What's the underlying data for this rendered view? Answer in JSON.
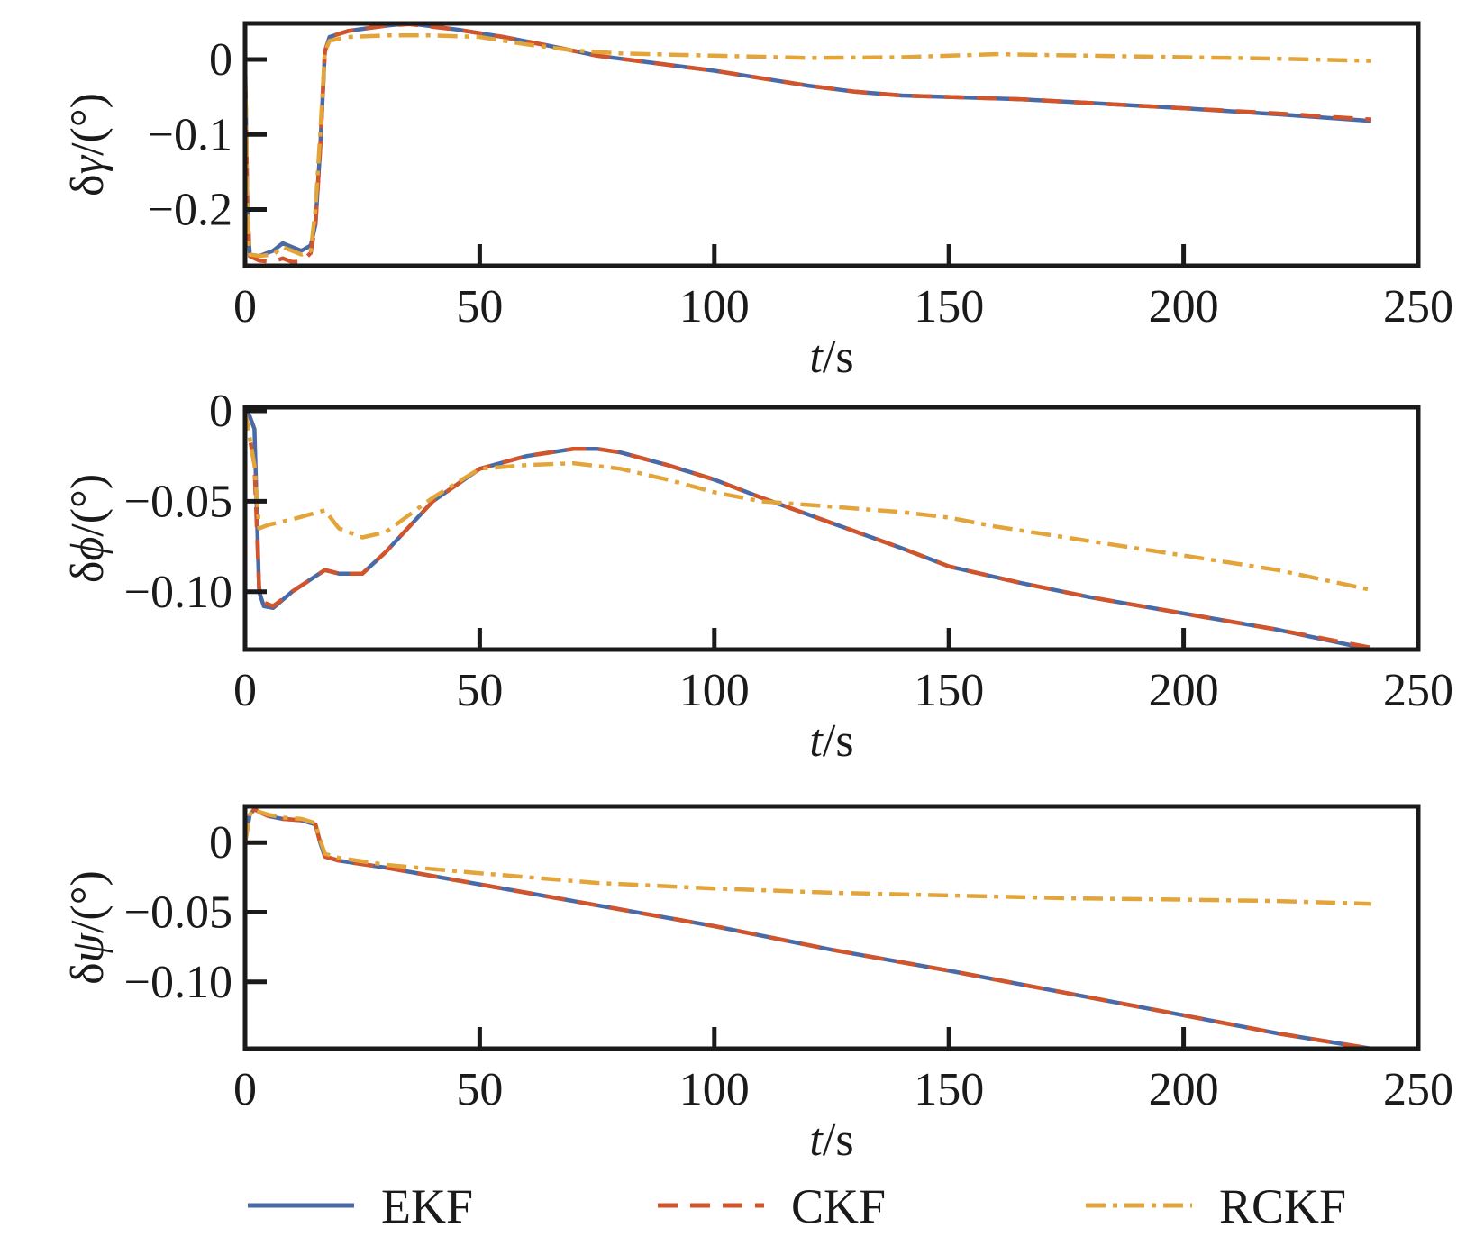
{
  "colors": {
    "EKF": "#4a6aa5",
    "CKF": "#d2542b",
    "RCKF": "#e3a43a",
    "axis": "#1a1a1a"
  },
  "legend": {
    "entries": [
      {
        "name": "EKF",
        "style": "solid"
      },
      {
        "name": "CKF",
        "style": "dashed"
      },
      {
        "name": "RCKF",
        "style": "dashdot"
      }
    ]
  },
  "chart_data": [
    {
      "type": "line",
      "id": "gamma",
      "title": "",
      "ylabel": "δγ/(°)",
      "xlabel": "t/s",
      "xlim": [
        0,
        250
      ],
      "ylim": [
        -0.275,
        0.048
      ],
      "xticks": [
        0,
        50,
        100,
        150,
        200,
        250
      ],
      "yticks": [
        0,
        -0.1,
        -0.2
      ],
      "ytick_labels": [
        "0",
        "−0.1",
        "−0.2"
      ],
      "series": [
        {
          "name": "EKF",
          "x": [
            0,
            0.5,
            1,
            3,
            6,
            8,
            10,
            12,
            14,
            15,
            16,
            17,
            18,
            22,
            30,
            35,
            45,
            55,
            65,
            75,
            85,
            100,
            110,
            120,
            130,
            140,
            150,
            165,
            180,
            200,
            220,
            240
          ],
          "y": [
            0,
            -0.2,
            -0.26,
            -0.262,
            -0.255,
            -0.245,
            -0.25,
            -0.255,
            -0.248,
            -0.22,
            -0.12,
            0.01,
            0.03,
            0.038,
            0.045,
            0.048,
            0.04,
            0.03,
            0.018,
            0.005,
            -0.003,
            -0.015,
            -0.025,
            -0.035,
            -0.043,
            -0.048,
            -0.05,
            -0.053,
            -0.058,
            -0.065,
            -0.073,
            -0.082
          ]
        },
        {
          "name": "CKF",
          "x": [
            0,
            0.5,
            1,
            3,
            6,
            8,
            10,
            12,
            14,
            15,
            16,
            17,
            18,
            22,
            30,
            35,
            45,
            55,
            65,
            75,
            85,
            100,
            110,
            120,
            130,
            140,
            150,
            165,
            180,
            200,
            220,
            240
          ],
          "y": [
            0,
            -0.2,
            -0.262,
            -0.268,
            -0.27,
            -0.265,
            -0.27,
            -0.27,
            -0.258,
            -0.22,
            -0.12,
            0.01,
            0.03,
            0.038,
            0.045,
            0.047,
            0.04,
            0.03,
            0.018,
            0.005,
            -0.003,
            -0.015,
            -0.025,
            -0.035,
            -0.043,
            -0.048,
            -0.05,
            -0.053,
            -0.058,
            -0.065,
            -0.072,
            -0.08
          ]
        },
        {
          "name": "RCKF",
          "x": [
            0,
            0.5,
            1,
            3,
            6,
            8,
            10,
            12,
            14,
            15,
            16,
            17,
            18,
            22,
            30,
            40,
            50,
            60,
            70,
            80,
            100,
            120,
            140,
            160,
            180,
            200,
            220,
            240
          ],
          "y": [
            0,
            -0.2,
            -0.26,
            -0.262,
            -0.26,
            -0.25,
            -0.255,
            -0.26,
            -0.255,
            -0.2,
            -0.1,
            0.01,
            0.025,
            0.03,
            0.032,
            0.032,
            0.03,
            0.02,
            0.012,
            0.008,
            0.005,
            0.002,
            0.003,
            0.007,
            0.005,
            0.003,
            0.001,
            -0.002
          ]
        }
      ]
    },
    {
      "type": "line",
      "id": "phi",
      "title": "",
      "ylabel": "δϕ/(°)",
      "xlabel": "t/s",
      "xlim": [
        0,
        250
      ],
      "ylim": [
        -0.132,
        0.002
      ],
      "xticks": [
        0,
        50,
        100,
        150,
        200,
        250
      ],
      "yticks": [
        0,
        -0.05,
        -0.1
      ],
      "ytick_labels": [
        "0",
        "−0.05",
        "−0.10"
      ],
      "series": [
        {
          "name": "EKF",
          "x": [
            0,
            1,
            2,
            3,
            4,
            6,
            10,
            17,
            20,
            25,
            30,
            40,
            50,
            60,
            70,
            75,
            80,
            90,
            100,
            110,
            125,
            140,
            150,
            165,
            180,
            200,
            220,
            240
          ],
          "y": [
            0,
            -0.003,
            -0.01,
            -0.1,
            -0.108,
            -0.109,
            -0.1,
            -0.088,
            -0.09,
            -0.09,
            -0.078,
            -0.05,
            -0.032,
            -0.025,
            -0.021,
            -0.021,
            -0.023,
            -0.03,
            -0.038,
            -0.048,
            -0.062,
            -0.076,
            -0.086,
            -0.095,
            -0.103,
            -0.112,
            -0.121,
            -0.132
          ]
        },
        {
          "name": "CKF",
          "x": [
            0,
            1,
            2,
            3,
            4,
            6,
            10,
            17,
            20,
            25,
            30,
            40,
            50,
            60,
            70,
            75,
            80,
            90,
            100,
            110,
            125,
            140,
            150,
            165,
            180,
            200,
            220,
            240
          ],
          "y": [
            0,
            -0.015,
            -0.03,
            -0.098,
            -0.106,
            -0.108,
            -0.1,
            -0.088,
            -0.09,
            -0.09,
            -0.078,
            -0.05,
            -0.032,
            -0.025,
            -0.021,
            -0.021,
            -0.023,
            -0.03,
            -0.038,
            -0.048,
            -0.062,
            -0.076,
            -0.086,
            -0.095,
            -0.103,
            -0.112,
            -0.121,
            -0.131
          ]
        },
        {
          "name": "RCKF",
          "x": [
            0,
            1,
            2,
            3,
            5,
            10,
            17,
            20,
            25,
            30,
            40,
            50,
            60,
            70,
            80,
            90,
            100,
            110,
            120,
            140,
            150,
            160,
            180,
            200,
            220,
            240
          ],
          "y": [
            0,
            -0.015,
            -0.03,
            -0.065,
            -0.063,
            -0.06,
            -0.055,
            -0.065,
            -0.07,
            -0.067,
            -0.048,
            -0.032,
            -0.03,
            -0.029,
            -0.032,
            -0.038,
            -0.045,
            -0.05,
            -0.052,
            -0.056,
            -0.059,
            -0.064,
            -0.072,
            -0.08,
            -0.088,
            -0.099
          ]
        }
      ]
    },
    {
      "type": "line",
      "id": "psi",
      "title": "",
      "ylabel": "δψ/(°)",
      "xlabel": "t/s",
      "xlim": [
        0,
        250
      ],
      "ylim": [
        -0.148,
        0.026
      ],
      "xticks": [
        0,
        50,
        100,
        150,
        200,
        250
      ],
      "yticks": [
        0,
        -0.05,
        -0.1
      ],
      "ytick_labels": [
        "0",
        "−0.05",
        "−0.10"
      ],
      "series": [
        {
          "name": "EKF",
          "x": [
            0,
            1,
            2,
            3,
            5,
            8,
            12,
            15,
            16,
            17,
            20,
            30,
            50,
            75,
            100,
            125,
            150,
            175,
            200,
            220,
            240
          ],
          "y": [
            0,
            0.02,
            0.024,
            0.022,
            0.019,
            0.017,
            0.016,
            0.013,
            0.0,
            -0.01,
            -0.013,
            -0.018,
            -0.03,
            -0.045,
            -0.06,
            -0.077,
            -0.092,
            -0.108,
            -0.124,
            -0.137,
            -0.148
          ]
        },
        {
          "name": "CKF",
          "x": [
            0,
            1,
            2,
            3,
            5,
            8,
            12,
            15,
            16,
            17,
            20,
            30,
            50,
            75,
            100,
            125,
            150,
            175,
            200,
            220,
            240
          ],
          "y": [
            0,
            0.02,
            0.024,
            0.022,
            0.019,
            0.017,
            0.016,
            0.013,
            0.0,
            -0.01,
            -0.013,
            -0.018,
            -0.03,
            -0.045,
            -0.06,
            -0.077,
            -0.092,
            -0.108,
            -0.124,
            -0.137,
            -0.148
          ]
        },
        {
          "name": "RCKF",
          "x": [
            0,
            1,
            2,
            3,
            5,
            8,
            12,
            15,
            16,
            17,
            20,
            30,
            50,
            75,
            100,
            125,
            150,
            175,
            200,
            220,
            240
          ],
          "y": [
            0,
            0.02,
            0.024,
            0.022,
            0.02,
            0.018,
            0.017,
            0.014,
            0.002,
            -0.008,
            -0.011,
            -0.016,
            -0.022,
            -0.029,
            -0.033,
            -0.036,
            -0.038,
            -0.04,
            -0.041,
            -0.042,
            -0.044
          ]
        }
      ]
    }
  ]
}
